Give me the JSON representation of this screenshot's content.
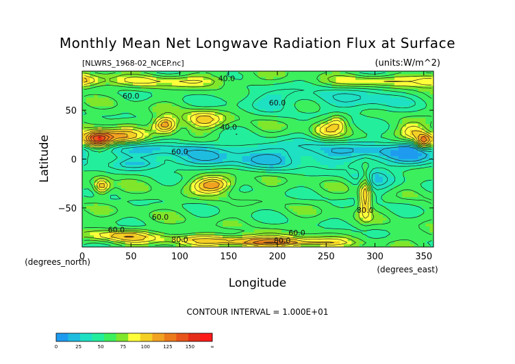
{
  "chart_data": {
    "type": "heatmap",
    "title": "Monthly Mean Net Longwave Radiation Flux at Surface",
    "subtitle_left": "[NLWRS_1968-02_NCEP.nc]",
    "subtitle_right": "(units:W/m^2)",
    "xlabel": "Longitude",
    "ylabel": "Latitude",
    "x_unit_note": "(degrees_east)",
    "y_unit_note": "(degrees_north)",
    "xlim": [
      0,
      360
    ],
    "ylim": [
      -90,
      90
    ],
    "x_ticks": [
      0,
      50,
      100,
      150,
      200,
      250,
      300,
      350
    ],
    "y_ticks": [
      50,
      0,
      -50
    ],
    "contour_interval_text": "CONTOUR INTERVAL = 1.000E+01",
    "contour_labels": [
      "40.0",
      "60.0",
      "60.0",
      "40.0",
      "60.0",
      "60.0",
      "60.0",
      "80.0",
      "80.0",
      "80.0",
      "60.0"
    ],
    "colorbar": {
      "tick_labels": [
        "0",
        "25",
        "50",
        "75",
        "100",
        "125",
        "150",
        "∞"
      ],
      "bins": [
        {
          "from": 0,
          "to": 12.5,
          "color": "#1e9bef"
        },
        {
          "from": 12.5,
          "to": 25,
          "color": "#1ebde0"
        },
        {
          "from": 25,
          "to": 37.5,
          "color": "#1ee0c3"
        },
        {
          "from": 37.5,
          "to": 50,
          "color": "#23ee9c"
        },
        {
          "from": 50,
          "to": 62.5,
          "color": "#3cef5c"
        },
        {
          "from": 62.5,
          "to": 75,
          "color": "#80e62b"
        },
        {
          "from": 75,
          "to": 87.5,
          "color": "#ffff3a"
        },
        {
          "from": 87.5,
          "to": 100,
          "color": "#f5d024"
        },
        {
          "from": 100,
          "to": 112.5,
          "color": "#f2a221"
        },
        {
          "from": 112.5,
          "to": 125,
          "color": "#ec7a1b"
        },
        {
          "from": 125,
          "to": 137.5,
          "color": "#e8551a"
        },
        {
          "from": 137.5,
          "to": 150,
          "color": "#e52e17"
        },
        {
          "from": 150,
          "to": 165,
          "color": "#ff1a1a"
        }
      ]
    },
    "approximate_field": {
      "background": 55,
      "features": [
        {
          "lon": 0,
          "lat": 10,
          "value": 28,
          "rlon": 360,
          "rlat": 10
        },
        {
          "lon": 60,
          "lat": -5,
          "value": 32,
          "rlon": 45,
          "rlat": 6
        },
        {
          "lon": 185,
          "lat": -2,
          "value": 30,
          "rlon": 95,
          "rlat": 10
        },
        {
          "lon": 300,
          "lat": -18,
          "value": 30,
          "rlon": 25,
          "rlat": 18
        },
        {
          "lon": 340,
          "lat": 5,
          "value": 32,
          "rlon": 25,
          "rlat": 12
        },
        {
          "lon": 290,
          "lat": 60,
          "value": 32,
          "rlon": 40,
          "rlat": 15
        },
        {
          "lon": 200,
          "lat": 62,
          "value": 35,
          "rlon": 50,
          "rlat": 12
        },
        {
          "lon": 15,
          "lat": 20,
          "value": 145,
          "rlon": 15,
          "rlat": 9
        },
        {
          "lon": 40,
          "lat": 22,
          "value": 100,
          "rlon": 25,
          "rlat": 8
        },
        {
          "lon": 85,
          "lat": 35,
          "value": 118,
          "rlon": 12,
          "rlat": 8
        },
        {
          "lon": 125,
          "lat": 40,
          "value": 92,
          "rlon": 20,
          "rlat": 10
        },
        {
          "lon": 135,
          "lat": -26,
          "value": 112,
          "rlon": 20,
          "rlat": 8
        },
        {
          "lon": 20,
          "lat": -28,
          "value": 100,
          "rlon": 8,
          "rlat": 8
        },
        {
          "lon": 290,
          "lat": -35,
          "value": 108,
          "rlon": 6,
          "rlat": 22
        },
        {
          "lon": 250,
          "lat": 30,
          "value": 80,
          "rlon": 15,
          "rlat": 10
        },
        {
          "lon": 262,
          "lat": 38,
          "value": 82,
          "rlon": 10,
          "rlat": 8
        },
        {
          "lon": 340,
          "lat": 28,
          "value": 90,
          "rlon": 15,
          "rlat": 9
        },
        {
          "lon": 350,
          "lat": 18,
          "value": 120,
          "rlon": 8,
          "rlat": 8
        },
        {
          "lon": 150,
          "lat": -82,
          "value": 90,
          "rlon": 80,
          "rlat": 5
        },
        {
          "lon": 40,
          "lat": -78,
          "value": 88,
          "rlon": 40,
          "rlat": 6
        },
        {
          "lon": 200,
          "lat": -86,
          "value": 105,
          "rlon": 60,
          "rlat": 4
        },
        {
          "lon": 90,
          "lat": 80,
          "value": 80,
          "rlon": 70,
          "rlat": 6
        },
        {
          "lon": 300,
          "lat": 80,
          "value": 85,
          "rlon": 40,
          "rlat": 6
        },
        {
          "lon": 360,
          "lat": 80,
          "value": 90,
          "rlon": 20,
          "rlat": 7
        }
      ]
    }
  }
}
